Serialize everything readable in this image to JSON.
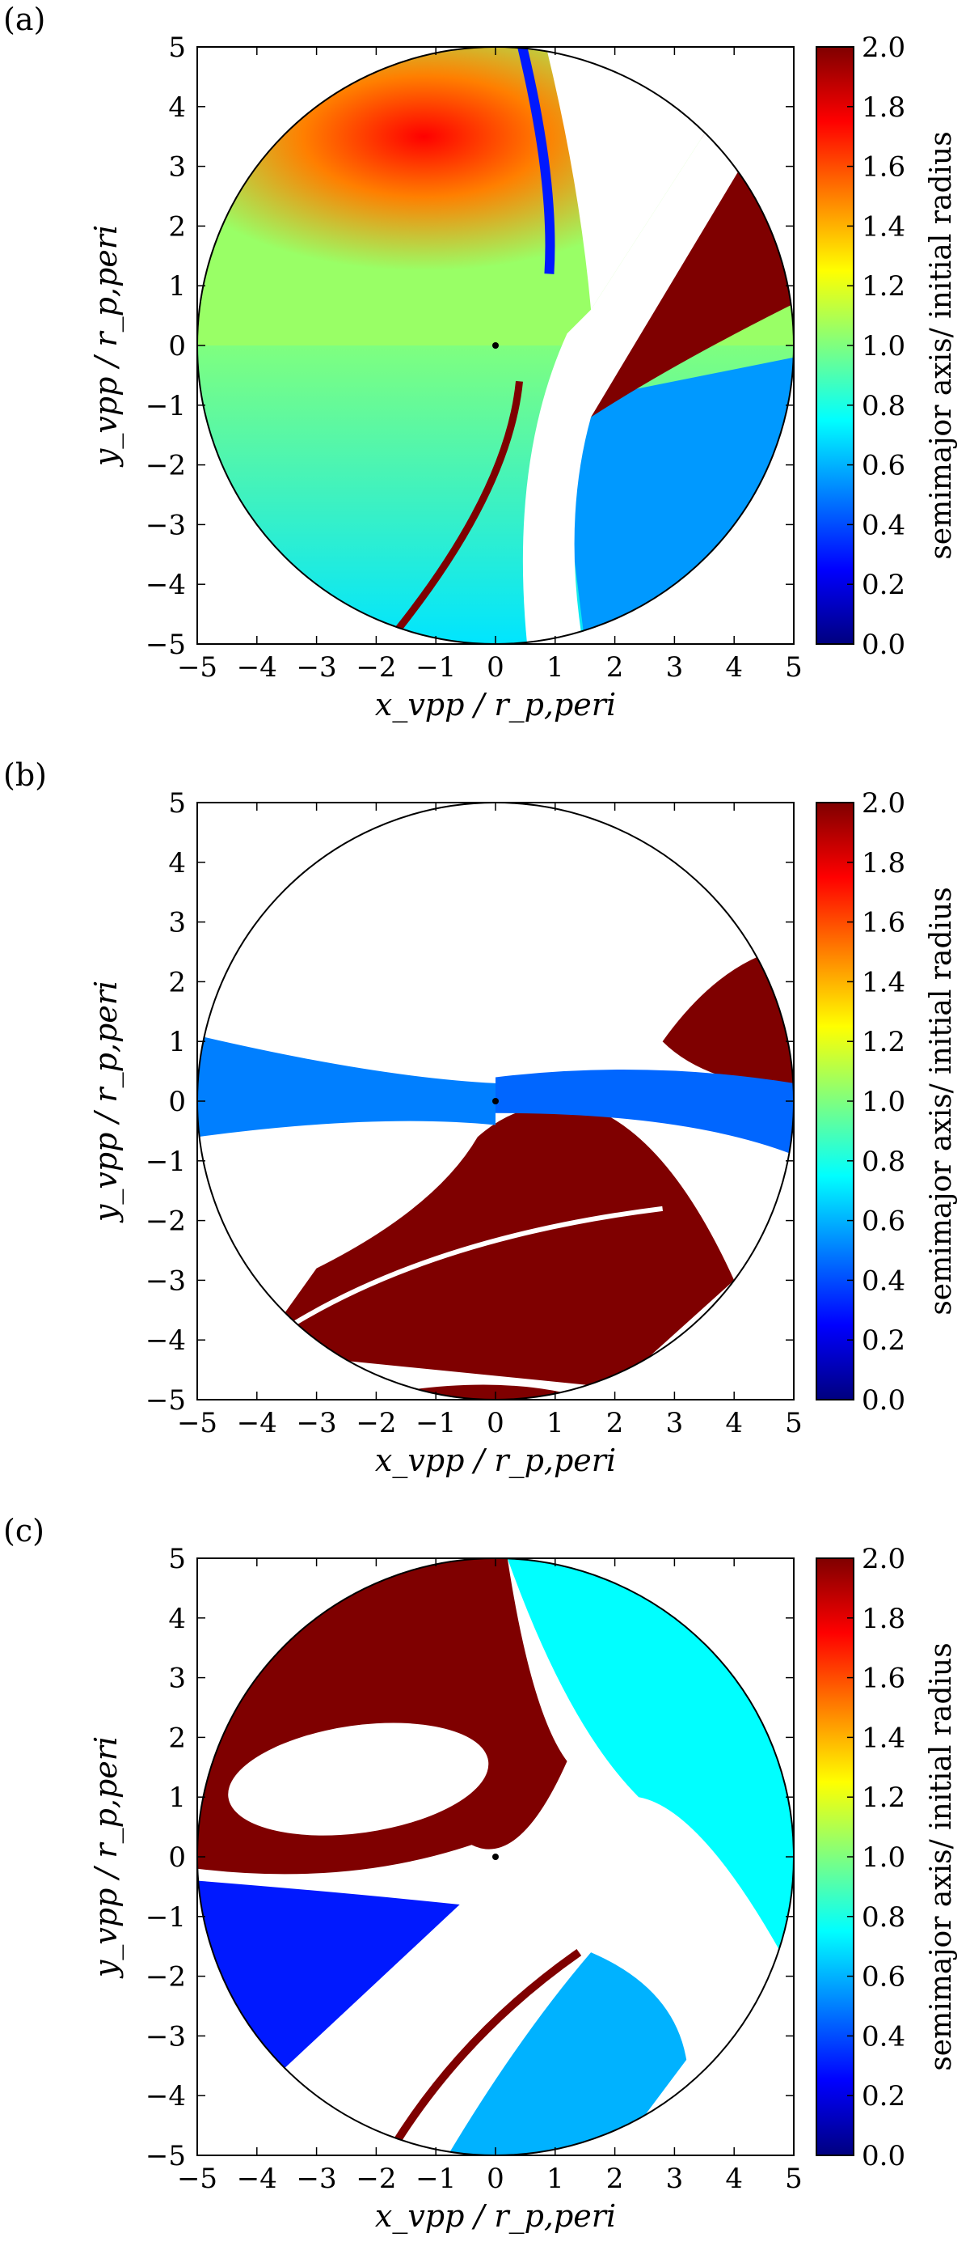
{
  "colors": {
    "jet": [
      "#00007f",
      "#0000ff",
      "#007fff",
      "#00ffff",
      "#7fff7f",
      "#ffff00",
      "#ff7f00",
      "#ff0000",
      "#7f0000"
    ],
    "saturated": "#7f0000",
    "frame": "#000000"
  },
  "chart_data": [
    {
      "type": "heatmap",
      "panel_label": "(a)",
      "xlabel": "x_vpp / r_p,peri",
      "ylabel": "y_vpp / r_p,peri",
      "xlim": [
        -5,
        5
      ],
      "ylim": [
        -5,
        5
      ],
      "xticks": [
        "−5",
        "−4",
        "−3",
        "−2",
        "−1",
        "0",
        "1",
        "2",
        "3",
        "4",
        "5"
      ],
      "yticks": [
        "−5",
        "−4",
        "−3",
        "−2",
        "−1",
        "0",
        "1",
        "2",
        "3",
        "4",
        "5"
      ],
      "colorbar": {
        "label": "semimajor axis/ initial radius",
        "range": [
          0,
          2
        ],
        "ticks": [
          "0.0",
          "0.2",
          "0.4",
          "0.6",
          "0.8",
          "1.0",
          "1.2",
          "1.4",
          "1.6",
          "1.8",
          "2.0"
        ]
      },
      "domain": "circle of radius 5 centred at (0,0)",
      "planet_marker": [
        0,
        0
      ],
      "regions": [
        {
          "desc": "upper-left lobe, peak near (-1.2, 1.6)",
          "value": 1.65
        },
        {
          "desc": "lower-left lobe",
          "value": 0.75
        },
        {
          "desc": "right of white gap, lower-right",
          "value": 0.55
        },
        {
          "desc": "diagonal band from (1.7,-1) to (5,1.8)",
          "value": 2.0
        },
        {
          "desc": "white gap band from (0.8,-5) to (3.5,3.5)",
          "value": null
        }
      ]
    },
    {
      "type": "heatmap",
      "panel_label": "(b)",
      "xlabel": "x_vpp / r_p,peri",
      "ylabel": "y_vpp / r_p,peri",
      "xlim": [
        -5,
        5
      ],
      "ylim": [
        -5,
        5
      ],
      "xticks": [
        "−5",
        "−4",
        "−3",
        "−2",
        "−1",
        "0",
        "1",
        "2",
        "3",
        "4",
        "5"
      ],
      "yticks": [
        "−5",
        "−4",
        "−3",
        "−2",
        "−1",
        "0",
        "1",
        "2",
        "3",
        "4",
        "5"
      ],
      "colorbar": {
        "label": "semimajor axis/ initial radius",
        "range": [
          0,
          2
        ],
        "ticks": [
          "0.0",
          "0.2",
          "0.4",
          "0.6",
          "0.8",
          "1.0",
          "1.2",
          "1.4",
          "1.6",
          "1.8",
          "2.0"
        ]
      },
      "domain": "circle of radius 5 centred at (0,0)",
      "planet_marker": [
        0,
        0
      ],
      "regions": [
        {
          "desc": "large lower blob",
          "value": 2.0
        },
        {
          "desc": "upper-right lobe near (4,1.5)",
          "value": 2.0
        },
        {
          "desc": "thin arms extending left and right at y≈0",
          "value": 0.5
        },
        {
          "desc": "upper half",
          "value": null
        }
      ]
    },
    {
      "type": "heatmap",
      "panel_label": "(c)",
      "xlabel": "x_vpp / r_p,peri",
      "ylabel": "y_vpp / r_p,peri",
      "xlim": [
        -5,
        5
      ],
      "ylim": [
        -5,
        5
      ],
      "xticks": [
        "−5",
        "−4",
        "−3",
        "−2",
        "−1",
        "0",
        "1",
        "2",
        "3",
        "4",
        "5"
      ],
      "yticks": [
        "−5",
        "−4",
        "−3",
        "−2",
        "−1",
        "0",
        "1",
        "2",
        "3",
        "4",
        "5"
      ],
      "colorbar": {
        "label": "semimajor axis/ initial radius",
        "range": [
          0,
          2
        ],
        "ticks": [
          "0.0",
          "0.2",
          "0.4",
          "0.6",
          "0.8",
          "1.0",
          "1.2",
          "1.4",
          "1.6",
          "1.8",
          "2.0"
        ]
      },
      "domain": "circle of radius 5 centred at (0,0)",
      "planet_marker": [
        0,
        0
      ],
      "regions": [
        {
          "desc": "upper-left area",
          "value": 2.0
        },
        {
          "desc": "upper-right area",
          "value": 0.7
        },
        {
          "desc": "lower-left area",
          "value": 0.3
        },
        {
          "desc": "lower-right wedge",
          "value": 0.6
        },
        {
          "desc": "oval hole left of centre",
          "value": null
        }
      ]
    }
  ]
}
